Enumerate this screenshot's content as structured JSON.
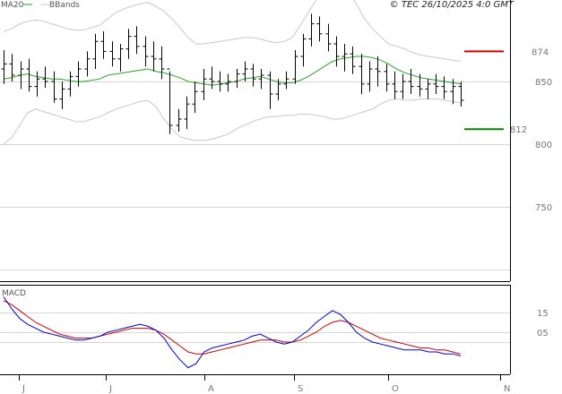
{
  "header": {
    "legend_ma": "MA20",
    "legend_bb": "BBands",
    "copyright": "© TEC 26/10/2025 4:0 GMT"
  },
  "macd_panel": {
    "label": "MACD"
  },
  "chart_data": [
    {
      "type": "ohlc",
      "panel": "price",
      "y_ticks": [
        850,
        800,
        750
      ],
      "ylim": [
        695,
        925
      ],
      "x_labels": [
        "J",
        "J",
        "A",
        "S",
        "O",
        "N"
      ],
      "grid": true,
      "levels": [
        {
          "value": 874,
          "label": "874",
          "color": "#cc0000"
        },
        {
          "value": 812,
          "label": "812",
          "color": "#008800"
        }
      ],
      "bar_color": "#000000",
      "series": [
        {
          "name": "MA20",
          "color": "#2aa52a",
          "values": [
            852,
            853,
            855,
            856,
            854,
            853,
            852,
            852,
            851,
            850,
            850,
            851,
            852,
            855,
            856,
            857,
            858,
            859,
            860,
            858,
            857,
            855,
            853,
            850,
            849,
            848,
            847,
            848,
            849,
            850,
            852,
            853,
            854,
            852,
            850,
            849,
            849,
            851,
            854,
            858,
            862,
            866,
            868,
            869,
            870,
            870,
            869,
            867,
            864,
            860,
            857,
            855,
            853,
            852,
            851,
            850,
            849,
            848
          ]
        },
        {
          "name": "BBands",
          "color": "#c8c8c8",
          "upper": [
            890,
            892,
            896,
            898,
            899,
            898,
            896,
            894,
            892,
            891,
            891,
            893,
            895,
            900,
            905,
            908,
            910,
            912,
            913,
            910,
            906,
            900,
            893,
            885,
            880,
            880,
            881,
            882,
            883,
            884,
            885,
            885,
            884,
            882,
            881,
            882,
            885,
            895,
            905,
            915,
            922,
            924,
            925,
            920,
            912,
            900,
            892,
            886,
            880,
            878,
            876,
            873,
            871,
            870,
            869,
            868,
            867,
            866
          ],
          "lower": [
            800,
            805,
            815,
            825,
            828,
            826,
            824,
            822,
            820,
            818,
            818,
            820,
            822,
            825,
            828,
            830,
            832,
            834,
            835,
            830,
            820,
            812,
            806,
            804,
            803,
            803,
            804,
            806,
            808,
            812,
            815,
            818,
            820,
            822,
            822,
            823,
            823,
            824,
            824,
            823,
            822,
            820,
            820,
            822,
            824,
            826,
            828,
            832,
            835,
            836,
            835,
            835,
            836,
            836,
            836,
            835,
            834,
            833
          ]
        }
      ],
      "ohlc": [
        [
          860,
          875,
          848,
          864
        ],
        [
          864,
          872,
          850,
          855
        ],
        [
          855,
          866,
          844,
          860
        ],
        [
          860,
          868,
          842,
          846
        ],
        [
          846,
          858,
          838,
          852
        ],
        [
          852,
          862,
          845,
          850
        ],
        [
          850,
          858,
          833,
          836
        ],
        [
          836,
          850,
          828,
          844
        ],
        [
          844,
          858,
          838,
          854
        ],
        [
          854,
          866,
          846,
          860
        ],
        [
          860,
          874,
          854,
          868
        ],
        [
          868,
          888,
          860,
          882
        ],
        [
          882,
          890,
          868,
          874
        ],
        [
          874,
          882,
          862,
          868
        ],
        [
          868,
          880,
          858,
          876
        ],
        [
          876,
          892,
          868,
          886
        ],
        [
          886,
          894,
          872,
          878
        ],
        [
          878,
          886,
          862,
          870
        ],
        [
          870,
          882,
          858,
          868
        ],
        [
          868,
          878,
          852,
          860
        ],
        [
          860,
          858,
          808,
          815
        ],
        [
          815,
          828,
          810,
          820
        ],
        [
          820,
          838,
          812,
          832
        ],
        [
          832,
          850,
          825,
          842
        ],
        [
          842,
          860,
          835,
          852
        ],
        [
          852,
          862,
          844,
          850
        ],
        [
          850,
          858,
          842,
          848
        ],
        [
          848,
          856,
          842,
          850
        ],
        [
          850,
          860,
          845,
          856
        ],
        [
          856,
          866,
          850,
          860
        ],
        [
          860,
          864,
          846,
          852
        ],
        [
          852,
          860,
          844,
          855
        ],
        [
          855,
          858,
          828,
          840
        ],
        [
          840,
          852,
          835,
          848
        ],
        [
          848,
          858,
          844,
          852
        ],
        [
          852,
          875,
          848,
          870
        ],
        [
          870,
          888,
          862,
          884
        ],
        [
          884,
          904,
          878,
          896
        ],
        [
          896,
          902,
          882,
          888
        ],
        [
          888,
          896,
          874,
          880
        ],
        [
          880,
          886,
          862,
          870
        ],
        [
          870,
          880,
          858,
          872
        ],
        [
          872,
          878,
          856,
          862
        ],
        [
          862,
          872,
          840,
          848
        ],
        [
          848,
          866,
          842,
          860
        ],
        [
          860,
          870,
          846,
          858
        ],
        [
          858,
          864,
          842,
          848
        ],
        [
          848,
          858,
          836,
          842
        ],
        [
          842,
          856,
          836,
          850
        ],
        [
          850,
          860,
          840,
          846
        ],
        [
          846,
          856,
          838,
          844
        ],
        [
          844,
          852,
          836,
          848
        ],
        [
          848,
          856,
          840,
          846
        ],
        [
          846,
          854,
          836,
          842
        ],
        [
          842,
          852,
          832,
          846
        ],
        [
          846,
          850,
          830,
          835
        ]
      ]
    },
    {
      "type": "line",
      "panel": "macd",
      "y_ticks": [
        "15",
        "05"
      ],
      "series": [
        {
          "name": "MACD",
          "color": "#0000cc",
          "values": [
            23,
            17,
            12,
            9,
            7,
            5,
            4,
            3,
            2,
            1,
            1,
            2,
            3,
            5,
            6,
            7,
            8,
            9,
            8,
            6,
            2,
            -4,
            -9,
            -13,
            -11,
            -5,
            -3,
            -2,
            -1,
            0,
            1,
            3,
            4,
            2,
            0,
            -1,
            0,
            3,
            6,
            10,
            13,
            16,
            14,
            10,
            5,
            2,
            0,
            -1,
            -2,
            -3,
            -4,
            -4,
            -4,
            -5,
            -5,
            -6,
            -6,
            -7
          ]
        },
        {
          "name": "Signal",
          "color": "#cc0000",
          "values": [
            21,
            19,
            16,
            13,
            10,
            8,
            6,
            4,
            3,
            2,
            2,
            2,
            3,
            4,
            5,
            6,
            7,
            7,
            7,
            6,
            4,
            1,
            -2,
            -5,
            -6,
            -6,
            -5,
            -4,
            -3,
            -2,
            -1,
            0,
            1,
            1,
            1,
            0,
            0,
            1,
            3,
            5,
            8,
            10,
            11,
            10,
            8,
            6,
            4,
            2,
            1,
            0,
            -1,
            -2,
            -3,
            -3,
            -4,
            -4,
            -5,
            -6
          ]
        }
      ]
    }
  ]
}
